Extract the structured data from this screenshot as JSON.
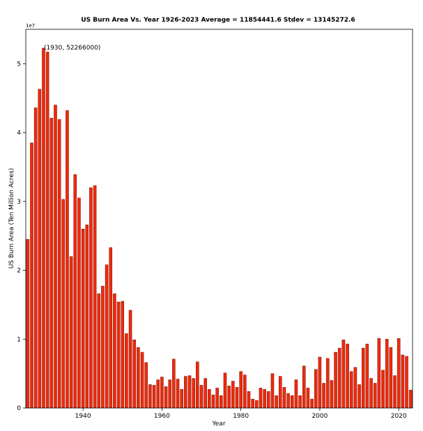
{
  "chart_data": {
    "type": "bar",
    "title": "US Burn Area Vs. Year 1926-2023 Average = 11854441.6 Stdev = 13145272.6",
    "xlabel": "Year",
    "ylabel": "US Burn Area (Ten Million Acres)",
    "y_scale_label": "1e7",
    "ylim": [
      0,
      55000000
    ],
    "xlim": [
      1925.5,
      2023.5
    ],
    "x_ticks": [
      1940,
      1960,
      1980,
      2000,
      2020
    ],
    "x_tick_labels": [
      "1940",
      "1960",
      "1980",
      "2000",
      "2020"
    ],
    "y_ticks": [
      0,
      10000000,
      20000000,
      30000000,
      40000000,
      50000000
    ],
    "y_tick_labels": [
      "0",
      "1",
      "2",
      "3",
      "4",
      "5"
    ],
    "annotation": {
      "text": "(1930, 52266000)",
      "x": 1930,
      "y": 52266000
    },
    "grid": false,
    "legend": "none",
    "bar_color": "#ee2a0c",
    "bar_edge_color": "#7a1206",
    "x": [
      1926,
      1927,
      1928,
      1929,
      1930,
      1931,
      1932,
      1933,
      1934,
      1935,
      1936,
      1937,
      1938,
      1939,
      1940,
      1941,
      1942,
      1943,
      1944,
      1945,
      1946,
      1947,
      1948,
      1949,
      1950,
      1951,
      1952,
      1953,
      1954,
      1955,
      1956,
      1957,
      1958,
      1959,
      1960,
      1961,
      1962,
      1963,
      1964,
      1965,
      1966,
      1967,
      1968,
      1969,
      1970,
      1971,
      1972,
      1973,
      1974,
      1975,
      1976,
      1977,
      1978,
      1979,
      1980,
      1981,
      1982,
      1983,
      1984,
      1985,
      1986,
      1987,
      1988,
      1989,
      1990,
      1991,
      1992,
      1993,
      1994,
      1995,
      1996,
      1997,
      1998,
      1999,
      2000,
      2001,
      2002,
      2003,
      2004,
      2005,
      2006,
      2007,
      2008,
      2009,
      2010,
      2011,
      2012,
      2013,
      2014,
      2015,
      2016,
      2017,
      2018,
      2019,
      2020,
      2021,
      2022,
      2023
    ],
    "values": [
      24500000,
      38500000,
      43600000,
      46300000,
      52266000,
      51700000,
      42100000,
      44000000,
      41900000,
      30300000,
      43200000,
      22000000,
      33900000,
      30500000,
      26000000,
      26600000,
      32000000,
      32300000,
      16600000,
      17700000,
      20800000,
      23300000,
      16600000,
      15400000,
      15500000,
      10800000,
      14200000,
      9900000,
      8800000,
      8100000,
      6600000,
      3400000,
      3300000,
      4100000,
      4500000,
      3100000,
      4100000,
      7100000,
      4200000,
      2700000,
      4600000,
      4700000,
      4300000,
      6700000,
      3300000,
      4300000,
      2700000,
      1900000,
      2900000,
      1800000,
      5100000,
      3200000,
      3900000,
      3000000,
      5300000,
      4800000,
      2400000,
      1300000,
      1100000,
      2900000,
      2700000,
      2400000,
      5000000,
      1800000,
      4600000,
      3000000,
      2100000,
      1800000,
      4100000,
      1800000,
      6100000,
      2900000,
      1300000,
      5600000,
      7400000,
      3600000,
      7200000,
      4000000,
      8100000,
      8700000,
      9900000,
      9300000,
      5300000,
      5900000,
      3400000,
      8700000,
      9300000,
      4300000,
      3600000,
      10100000,
      5500000,
      10000000,
      8800000,
      4700000,
      10100000,
      7700000,
      7500000,
      2600000
    ]
  }
}
